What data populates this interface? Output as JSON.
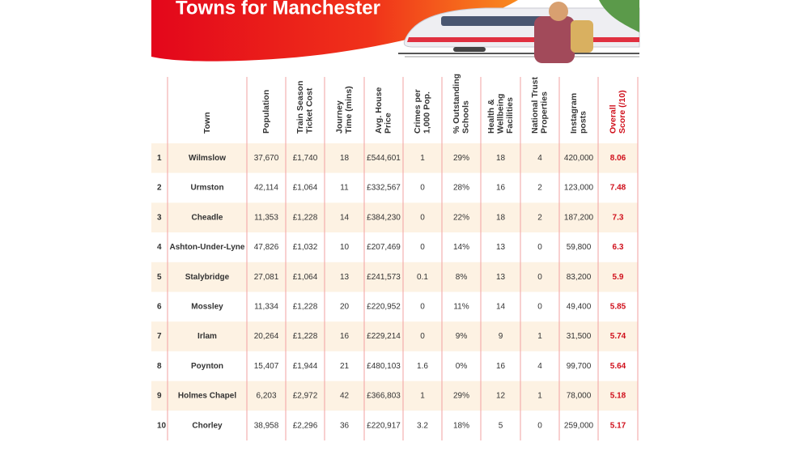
{
  "header": {
    "title": "Towns for Manchester"
  },
  "table": {
    "columns": [
      [
        "Town"
      ],
      [
        "Population"
      ],
      [
        "Train Season",
        "Ticket Cost"
      ],
      [
        "Journey",
        "Time (mins)"
      ],
      [
        "Avg. House",
        "Price"
      ],
      [
        "Crimes per",
        "1,000 Pop."
      ],
      [
        "% Outstanding",
        "Schools"
      ],
      [
        "Health &",
        "Wellbeing",
        "Facilities"
      ],
      [
        "National Trust",
        "Properties"
      ],
      [
        "Instagram",
        "posts"
      ],
      [
        "Overall",
        "Score (/10)"
      ]
    ],
    "rows": [
      [
        "1",
        "Wilmslow",
        "37,670",
        "£1,740",
        "18",
        "£544,601",
        "1",
        "29%",
        "18",
        "4",
        "420,000",
        "8.06"
      ],
      [
        "2",
        "Urmston",
        "42,114",
        "£1,064",
        "11",
        "£332,567",
        "0",
        "28%",
        "16",
        "2",
        "123,000",
        "7.48"
      ],
      [
        "3",
        "Cheadle",
        "11,353",
        "£1,228",
        "14",
        "£384,230",
        "0",
        "22%",
        "18",
        "2",
        "187,200",
        "7.3"
      ],
      [
        "4",
        "Ashton-Under-Lyne",
        "47,826",
        "£1,032",
        "10",
        "£207,469",
        "0",
        "14%",
        "13",
        "0",
        "59,800",
        "6.3"
      ],
      [
        "5",
        "Stalybridge",
        "27,081",
        "£1,064",
        "13",
        "£241,573",
        "0.1",
        "8%",
        "13",
        "0",
        "83,200",
        "5.9"
      ],
      [
        "6",
        "Mossley",
        "11,334",
        "£1,228",
        "20",
        "£220,952",
        "0",
        "11%",
        "14",
        "0",
        "49,400",
        "5.85"
      ],
      [
        "7",
        "Irlam",
        "20,264",
        "£1,228",
        "16",
        "£229,214",
        "0",
        "9%",
        "9",
        "1",
        "31,500",
        "5.74"
      ],
      [
        "8",
        "Poynton",
        "15,407",
        "£1,944",
        "21",
        "£480,103",
        "1.6",
        "0%",
        "16",
        "4",
        "99,700",
        "5.64"
      ],
      [
        "9",
        "Holmes Chapel",
        "6,203",
        "£2,972",
        "42",
        "£366,803",
        "1",
        "29%",
        "12",
        "1",
        "78,000",
        "5.18"
      ],
      [
        "10",
        "Chorley",
        "38,958",
        "£2,296",
        "36",
        "£220,917",
        "3.2",
        "18%",
        "5",
        "0",
        "259,000",
        "5.17"
      ]
    ]
  }
}
